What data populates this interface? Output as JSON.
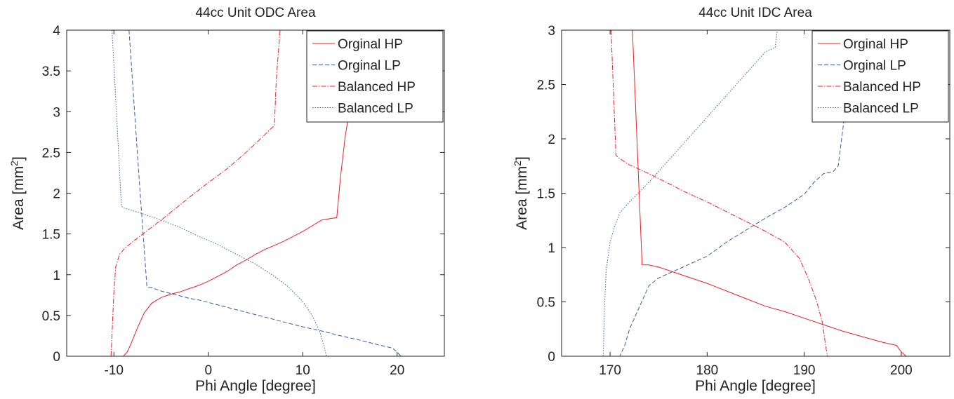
{
  "chart_data": [
    {
      "type": "line",
      "title": "44cc Unit ODC Area",
      "xlabel": "Phi Angle [degree]",
      "ylabel_prefix": "Area [mm",
      "ylabel_sup": "2",
      "ylabel_suffix": "]",
      "xlim": [
        -15,
        25
      ],
      "ylim": [
        0,
        4
      ],
      "xticks": [
        -10,
        0,
        10,
        20
      ],
      "xticklabels": [
        "-10",
        "0",
        "10",
        "20"
      ],
      "yticks": [
        0,
        0.5,
        1,
        1.5,
        2,
        2.5,
        3,
        3.5,
        4
      ],
      "yticklabels": [
        "0",
        "0.5",
        "1",
        "1.5",
        "2",
        "2.5",
        "3",
        "3.5",
        "4"
      ],
      "legend_position": "top-right",
      "series": [
        {
          "name": "Orginal HP",
          "color": "#e8202a",
          "dash": "",
          "x": [
            -15,
            -9,
            -8.6,
            -8.2,
            -7.5,
            -6.8,
            -6,
            -5,
            -4,
            -3,
            -2,
            -1,
            0,
            1,
            2,
            3,
            4,
            5,
            6,
            7,
            8,
            9,
            10,
            11,
            12,
            13,
            13.6,
            14,
            14.5,
            15
          ],
          "y": [
            0,
            0,
            0.05,
            0.15,
            0.35,
            0.53,
            0.65,
            0.72,
            0.76,
            0.79,
            0.83,
            0.87,
            0.92,
            0.98,
            1.04,
            1.12,
            1.18,
            1.25,
            1.31,
            1.36,
            1.41,
            1.47,
            1.53,
            1.6,
            1.67,
            1.69,
            1.7,
            2.2,
            2.7,
            3.05
          ]
        },
        {
          "name": "Orginal LP",
          "color": "#3c5aa8",
          "dash": "6,3",
          "x": [
            -8.4,
            -7.4,
            -6.5,
            -6,
            -5,
            -4,
            -3,
            -2,
            -1,
            0,
            2,
            4,
            6,
            8,
            10,
            12,
            14,
            16,
            18,
            19.5,
            20,
            20.4,
            25
          ],
          "y": [
            4,
            2.3,
            0.85,
            0.84,
            0.8,
            0.77,
            0.74,
            0.71,
            0.69,
            0.66,
            0.6,
            0.54,
            0.48,
            0.42,
            0.36,
            0.31,
            0.25,
            0.2,
            0.14,
            0.1,
            0.05,
            0,
            0
          ]
        },
        {
          "name": "Balanced HP",
          "color": "#e8202a",
          "dash": "7,2,1.5,2",
          "x": [
            -10.3,
            -10,
            -9.8,
            -9.4,
            -8.8,
            -7.5,
            -5,
            -2,
            0,
            2,
            4,
            6,
            7,
            7.2,
            7.6
          ],
          "y": [
            0,
            0.8,
            1.1,
            1.25,
            1.33,
            1.45,
            1.67,
            1.95,
            2.13,
            2.3,
            2.5,
            2.72,
            2.83,
            3.4,
            4
          ]
        },
        {
          "name": "Balanced LP",
          "color": "#3c5aa8",
          "dash": "1.5,2",
          "x": [
            -10.2,
            -9.2,
            -9,
            -7,
            -5,
            -3,
            -1,
            1,
            3,
            5,
            7,
            8.5,
            10,
            11,
            11.8,
            12.3,
            12.5
          ],
          "y": [
            4,
            1.84,
            1.82,
            1.75,
            1.67,
            1.58,
            1.47,
            1.37,
            1.25,
            1.13,
            0.98,
            0.85,
            0.67,
            0.5,
            0.3,
            0.1,
            0
          ]
        }
      ]
    },
    {
      "type": "line",
      "title": "44cc Unit IDC Area",
      "xlabel": "Phi Angle [degree]",
      "ylabel_prefix": "Area [mm",
      "ylabel_sup": "2",
      "ylabel_suffix": "]",
      "xlim": [
        165,
        205
      ],
      "ylim": [
        0,
        3
      ],
      "xticks": [
        170,
        180,
        190,
        200
      ],
      "xticklabels": [
        "170",
        "180",
        "190",
        "200"
      ],
      "yticks": [
        0,
        0.5,
        1,
        1.5,
        2,
        2.5,
        3
      ],
      "yticklabels": [
        "0",
        "0.5",
        "1",
        "1.5",
        "2",
        "2.5",
        "3"
      ],
      "legend_position": "top-right",
      "series": [
        {
          "name": "Orginal HP",
          "color": "#e8202a",
          "dash": "",
          "x": [
            172.3,
            173.3,
            174,
            175,
            176,
            178,
            180,
            182,
            184,
            186,
            188,
            190,
            192,
            194,
            196,
            198,
            199.5,
            200,
            200.5,
            205
          ],
          "y": [
            3,
            0.84,
            0.84,
            0.82,
            0.79,
            0.73,
            0.67,
            0.6,
            0.53,
            0.46,
            0.41,
            0.35,
            0.29,
            0.23,
            0.18,
            0.13,
            0.1,
            0.04,
            0,
            0
          ]
        },
        {
          "name": "Orginal LP",
          "color": "#3c5aa8",
          "dash": "6,3",
          "x": [
            165,
            171,
            171.5,
            172,
            173,
            174,
            175,
            176,
            178,
            180,
            182,
            184,
            186,
            188,
            190,
            191,
            192,
            193,
            193.5,
            194,
            194.5,
            195
          ],
          "y": [
            0,
            0,
            0.1,
            0.25,
            0.45,
            0.65,
            0.72,
            0.76,
            0.84,
            0.92,
            1.05,
            1.16,
            1.27,
            1.37,
            1.49,
            1.6,
            1.68,
            1.7,
            1.75,
            2.1,
            2.5,
            3
          ]
        },
        {
          "name": "Balanced HP",
          "color": "#e8202a",
          "dash": "7,2,1.5,2",
          "x": [
            170.1,
            170.6,
            170.8,
            172,
            174,
            176,
            178,
            180,
            182,
            184,
            186,
            188,
            189.5,
            190.5,
            191.3,
            191.9,
            192.2,
            192.4
          ],
          "y": [
            3,
            1.85,
            1.83,
            1.76,
            1.68,
            1.59,
            1.5,
            1.42,
            1.33,
            1.24,
            1.15,
            1.05,
            0.9,
            0.7,
            0.5,
            0.3,
            0.1,
            0
          ]
        },
        {
          "name": "Balanced LP",
          "color": "#3c5aa8",
          "dash": "1.5,2",
          "x": [
            165,
            169.3,
            169.4,
            169.6,
            170,
            170.5,
            171,
            172,
            174,
            176,
            178,
            180,
            182,
            184,
            186,
            187,
            187.5,
            188
          ],
          "y": [
            0,
            0,
            0.4,
            0.8,
            1.05,
            1.2,
            1.32,
            1.42,
            1.6,
            1.8,
            2,
            2.2,
            2.4,
            2.6,
            2.8,
            2.84,
            3.2,
            3.6
          ]
        }
      ]
    }
  ]
}
